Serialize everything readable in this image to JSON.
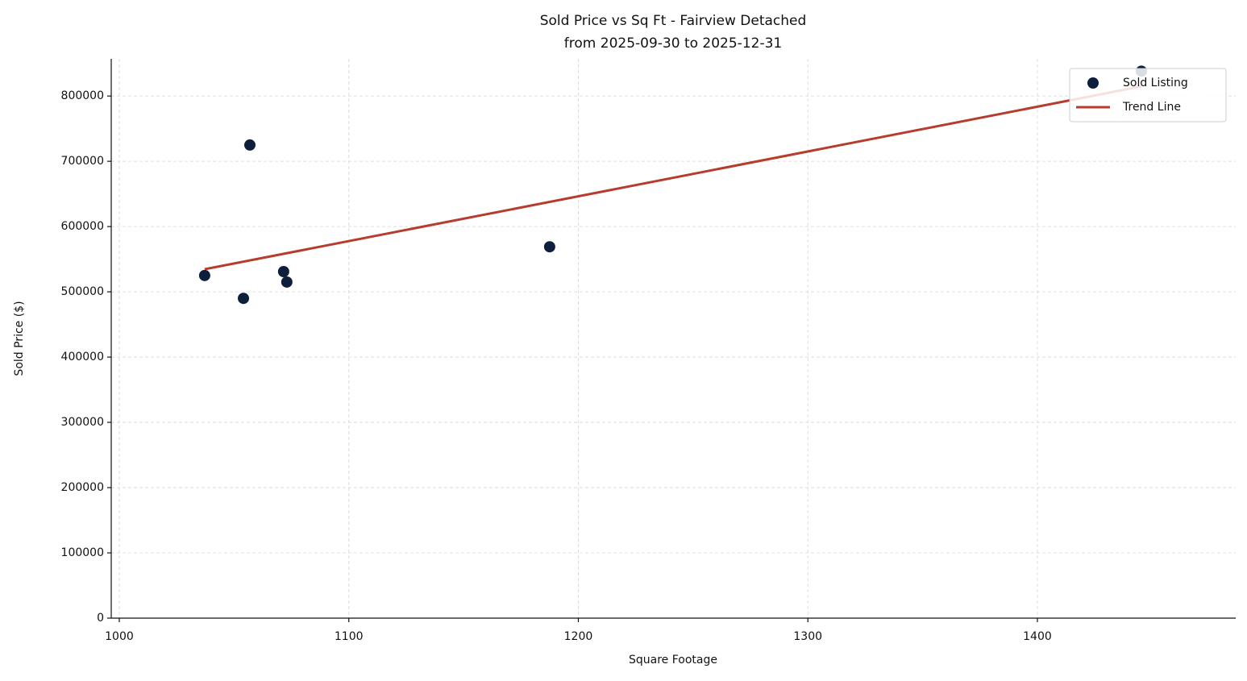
{
  "chart_data": {
    "type": "scatter",
    "title": "Sold Price vs Sq Ft - Fairview Detached",
    "subtitle": "from 2025-09-30 to 2025-12-31",
    "x_label": "Square Footage",
    "y_label": "Sold Price ($)",
    "series": [
      {
        "name": "Sold Listing",
        "color": "#0d1f3c",
        "mark": "point",
        "x": [
          1037.2,
          1056.9,
          1054.1,
          1071.6,
          1073.0,
          1187.5,
          1445.3
        ],
        "values": [
          525000,
          725000,
          490000,
          531000,
          515000,
          569000,
          838000
        ]
      },
      {
        "name": "Trend Line",
        "color": "#b83c2e",
        "mark": "line",
        "x": [
          1037.2,
          1445.3
        ],
        "values": [
          534600,
          814800
        ]
      }
    ],
    "xlim": [
      996.5,
      1486.4
    ],
    "xticks": [
      1000,
      1100,
      1200,
      1300,
      1400
    ],
    "ylim": [
      0,
      857000
    ],
    "yticks": [
      0,
      100000,
      200000,
      300000,
      400000,
      500000,
      600000,
      700000,
      800000
    ],
    "grid": true,
    "legend": "upper right"
  }
}
